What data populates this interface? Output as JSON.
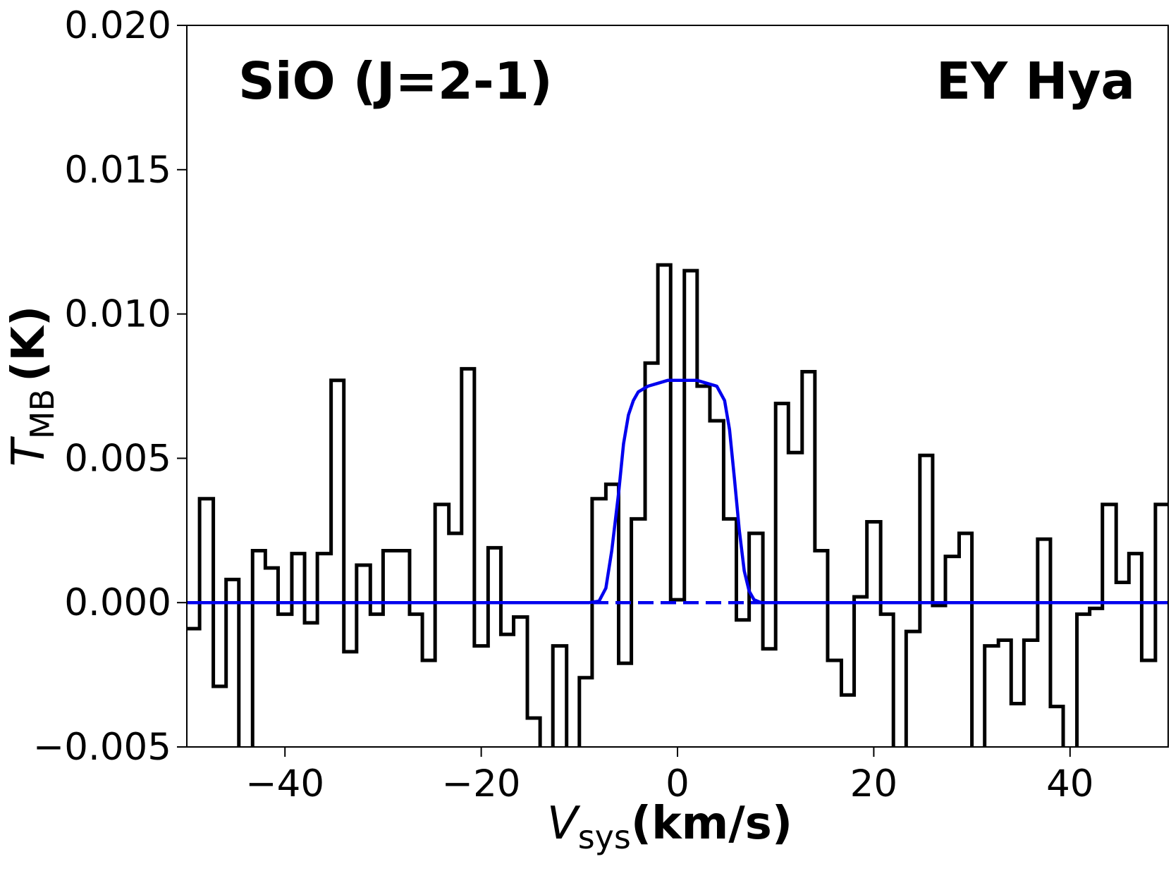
{
  "chart_data": {
    "type": "line",
    "line_label": "SiO (J=2-1)",
    "source_label": "EY Hya",
    "xlabel": {
      "var": "V",
      "sub": "sys",
      "unit": "(km/s)"
    },
    "ylabel": {
      "var": "T",
      "sub": "MB",
      "unit": "(K)"
    },
    "xlim": [
      -50,
      50
    ],
    "ylim": [
      -0.005,
      0.02
    ],
    "xticks": [
      -40,
      -20,
      0,
      20,
      40
    ],
    "xtick_labels": [
      "−40",
      "−20",
      "0",
      "20",
      "40"
    ],
    "yticks": [
      -0.005,
      0,
      0.005,
      0.01,
      0.015,
      0.02
    ],
    "ytick_labels": [
      "−0.005",
      "0.000",
      "0.005",
      "0.010",
      "0.015",
      "0.020"
    ],
    "grid": false,
    "series": [
      {
        "style": "steps",
        "color": "#000000",
        "bin_edges": [
          -50.0,
          -48.7,
          -47.3,
          -46.0,
          -44.7,
          -43.3,
          -42.0,
          -40.7,
          -39.3,
          -38.0,
          -36.7,
          -35.3,
          -34.0,
          -32.7,
          -31.3,
          -30.0,
          -28.7,
          -27.3,
          -26.0,
          -24.7,
          -23.3,
          -22.0,
          -20.7,
          -19.3,
          -18.0,
          -16.7,
          -15.3,
          -14.0,
          -12.7,
          -11.3,
          -10.0,
          -8.7,
          -7.3,
          -6.0,
          -4.7,
          -3.3,
          -2.0,
          -0.7,
          0.7,
          2.0,
          3.3,
          4.7,
          6.0,
          7.3,
          8.7,
          10.0,
          11.3,
          12.7,
          14.0,
          15.3,
          16.7,
          18.0,
          19.3,
          20.7,
          22.0,
          23.3,
          24.7,
          26.0,
          27.3,
          28.7,
          30.0,
          31.3,
          32.7,
          34.0,
          35.3,
          36.7,
          38.0,
          39.3,
          40.7,
          42.0,
          43.3,
          44.7,
          46.0,
          47.3,
          48.7,
          50.0
        ],
        "values": [
          -0.0009,
          0.0036,
          -0.0029,
          0.0008,
          -0.009,
          0.0018,
          0.0012,
          -0.0004,
          0.0017,
          -0.0007,
          0.0017,
          0.0077,
          -0.0017,
          0.0013,
          -0.0004,
          0.0018,
          0.0018,
          -0.0004,
          -0.002,
          0.0034,
          0.0024,
          0.0081,
          -0.0015,
          0.0019,
          -0.0011,
          -0.0005,
          -0.004,
          -0.009,
          -0.0015,
          -0.009,
          -0.0026,
          0.0036,
          0.0041,
          -0.0021,
          0.0029,
          0.0083,
          0.0117,
          0.0001,
          0.0115,
          0.0075,
          0.0063,
          0.0029,
          -0.0006,
          0.0024,
          -0.0016,
          0.0069,
          0.0052,
          0.008,
          0.0018,
          -0.002,
          -0.0032,
          0.0002,
          0.0028,
          -0.0004,
          -0.009,
          -0.001,
          0.0051,
          -0.0001,
          0.0016,
          0.0024,
          -0.009,
          -0.0015,
          -0.0013,
          -0.0035,
          -0.0013,
          0.0022,
          -0.0036,
          -0.009,
          -0.0004,
          -0.0002,
          0.0034,
          0.0007,
          0.0017,
          -0.002,
          0.0034
        ]
      },
      {
        "style": "line",
        "color": "#0000ee",
        "x": [
          -50,
          -9.0,
          -8.0,
          -7.3,
          -6.7,
          -6.0,
          -5.5,
          -5.0,
          -4.5,
          -4.0,
          -3.5,
          -3.0,
          -2.0,
          -1.0,
          0.0,
          1.0,
          2.0,
          3.0,
          4.0,
          4.8,
          5.3,
          5.8,
          6.3,
          6.8,
          7.3,
          7.8,
          8.5,
          9.5,
          50
        ],
        "y": [
          0.0,
          0.0,
          5e-05,
          0.0005,
          0.0018,
          0.0038,
          0.0055,
          0.0065,
          0.007,
          0.0073,
          0.0074,
          0.0075,
          0.0076,
          0.0077,
          0.0077,
          0.0077,
          0.0077,
          0.0076,
          0.0075,
          0.007,
          0.006,
          0.0043,
          0.0025,
          0.0011,
          0.0004,
          0.0001,
          0.0,
          0.0,
          0.0
        ]
      },
      {
        "style": "dashed",
        "color": "#0000ee",
        "x": [
          -50,
          50
        ],
        "y": [
          0.0,
          0.0
        ]
      }
    ]
  }
}
